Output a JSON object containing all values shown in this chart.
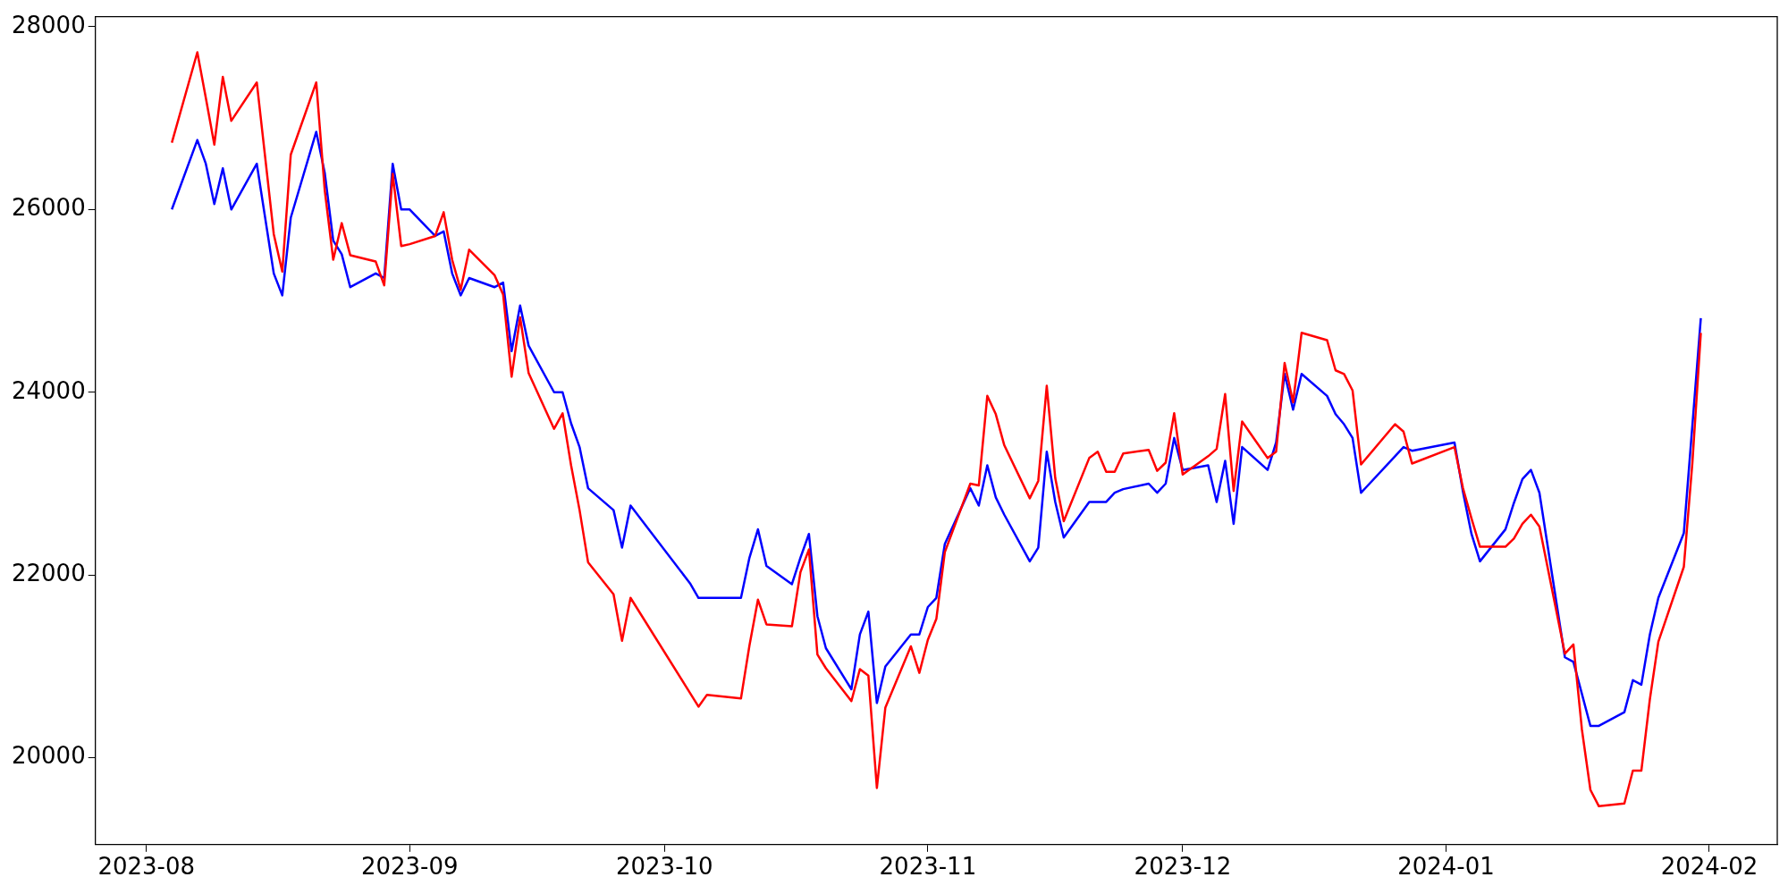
{
  "chart_data": {
    "type": "line",
    "x": [
      "2023-08-04",
      "2023-08-07",
      "2023-08-08",
      "2023-08-09",
      "2023-08-10",
      "2023-08-11",
      "2023-08-14",
      "2023-08-16",
      "2023-08-17",
      "2023-08-18",
      "2023-08-21",
      "2023-08-22",
      "2023-08-23",
      "2023-08-24",
      "2023-08-25",
      "2023-08-28",
      "2023-08-29",
      "2023-08-30",
      "2023-08-31",
      "2023-09-01",
      "2023-09-04",
      "2023-09-05",
      "2023-09-06",
      "2023-09-07",
      "2023-09-08",
      "2023-09-11",
      "2023-09-12",
      "2023-09-13",
      "2023-09-14",
      "2023-09-15",
      "2023-09-18",
      "2023-09-19",
      "2023-09-20",
      "2023-09-21",
      "2023-09-22",
      "2023-09-25",
      "2023-09-26",
      "2023-09-27",
      "2023-10-04",
      "2023-10-05",
      "2023-10-06",
      "2023-10-10",
      "2023-10-11",
      "2023-10-12",
      "2023-10-13",
      "2023-10-16",
      "2023-10-17",
      "2023-10-18",
      "2023-10-19",
      "2023-10-20",
      "2023-10-23",
      "2023-10-24",
      "2023-10-25",
      "2023-10-26",
      "2023-10-27",
      "2023-10-30",
      "2023-10-31",
      "2023-11-01",
      "2023-11-02",
      "2023-11-03",
      "2023-11-06",
      "2023-11-07",
      "2023-11-08",
      "2023-11-09",
      "2023-11-10",
      "2023-11-13",
      "2023-11-14",
      "2023-11-15",
      "2023-11-16",
      "2023-11-17",
      "2023-11-20",
      "2023-11-21",
      "2023-11-22",
      "2023-11-23",
      "2023-11-24",
      "2023-11-27",
      "2023-11-28",
      "2023-11-29",
      "2023-11-30",
      "2023-12-01",
      "2023-12-04",
      "2023-12-05",
      "2023-12-06",
      "2023-12-07",
      "2023-12-08",
      "2023-12-11",
      "2023-12-12",
      "2023-12-13",
      "2023-12-14",
      "2023-12-15",
      "2023-12-18",
      "2023-12-19",
      "2023-12-20",
      "2023-12-21",
      "2023-12-22",
      "2023-12-26",
      "2023-12-27",
      "2023-12-28",
      "2024-01-02",
      "2024-01-03",
      "2024-01-04",
      "2024-01-05",
      "2024-01-08",
      "2024-01-09",
      "2024-01-10",
      "2024-01-11",
      "2024-01-12",
      "2024-01-15",
      "2024-01-16",
      "2024-01-17",
      "2024-01-18",
      "2024-01-19",
      "2024-01-22",
      "2024-01-23",
      "2024-01-24",
      "2024-01-25",
      "2024-01-26",
      "2024-01-29",
      "2024-01-30",
      "2024-01-31"
    ],
    "series": [
      {
        "color": "#ff0000",
        "values": [
          26730,
          27720,
          27220,
          26710,
          27450,
          26970,
          27390,
          25730,
          25320,
          26600,
          27390,
          26210,
          25450,
          25850,
          25500,
          25430,
          25170,
          26390,
          25600,
          25620,
          25710,
          25970,
          25450,
          25120,
          25560,
          25280,
          25070,
          24170,
          24820,
          24210,
          23600,
          23770,
          23200,
          22710,
          22140,
          21790,
          21280,
          21750,
          20710,
          20560,
          20690,
          20650,
          21230,
          21730,
          21460,
          21440,
          22030,
          22280,
          21130,
          20980,
          20620,
          20970,
          20900,
          19670,
          20550,
          21220,
          20930,
          21290,
          21520,
          22250,
          23000,
          22980,
          23960,
          23760,
          23420,
          22840,
          23030,
          24070,
          23060,
          22590,
          23280,
          23350,
          23130,
          23130,
          23330,
          23370,
          23140,
          23230,
          23770,
          23100,
          23300,
          23380,
          23980,
          22920,
          23680,
          23280,
          23350,
          24320,
          23890,
          24650,
          24570,
          24240,
          24200,
          24020,
          23210,
          23650,
          23570,
          23220,
          23400,
          22950,
          22620,
          22310,
          22310,
          22400,
          22560,
          22660,
          22530,
          21140,
          21240,
          20310,
          19650,
          19470,
          19500,
          19860,
          19860,
          20640,
          21270,
          22090,
          23220,
          24650
        ]
      },
      {
        "color": "#0000ff",
        "values": [
          26000,
          26760,
          26500,
          26060,
          26450,
          26000,
          26500,
          25300,
          25060,
          25910,
          26850,
          26400,
          25660,
          25510,
          25150,
          25300,
          25250,
          26500,
          26000,
          26000,
          25710,
          25760,
          25300,
          25060,
          25250,
          25150,
          25200,
          24450,
          24950,
          24510,
          24000,
          24000,
          23660,
          23400,
          22950,
          22710,
          22300,
          22760,
          21910,
          21750,
          21750,
          21750,
          22190,
          22500,
          22100,
          21900,
          22190,
          22450,
          21550,
          21200,
          20750,
          21350,
          21600,
          20600,
          21000,
          21350,
          21350,
          21650,
          21750,
          22340,
          22950,
          22760,
          23200,
          22850,
          22660,
          22150,
          22300,
          23350,
          22800,
          22410,
          22800,
          22800,
          22800,
          22900,
          22940,
          23000,
          22900,
          23000,
          23500,
          23150,
          23200,
          22800,
          23250,
          22560,
          23400,
          23150,
          23450,
          24200,
          23810,
          24200,
          23960,
          23760,
          23650,
          23500,
          22900,
          23300,
          23400,
          23360,
          23450,
          22910,
          22450,
          22150,
          22500,
          22790,
          23050,
          23150,
          22900,
          21100,
          21050,
          20700,
          20350,
          20350,
          20500,
          20850,
          20800,
          21350,
          21750,
          22460,
          23630,
          24810
        ]
      }
    ],
    "xlim": [
      "2023-07-26",
      "2024-02-09"
    ],
    "xticks": [
      {
        "value": "2023-08-01",
        "label": "2023-08"
      },
      {
        "value": "2023-09-01",
        "label": "2023-09"
      },
      {
        "value": "2023-10-01",
        "label": "2023-10"
      },
      {
        "value": "2023-11-01",
        "label": "2023-11"
      },
      {
        "value": "2023-12-01",
        "label": "2023-12"
      },
      {
        "value": "2024-01-01",
        "label": "2024-01"
      },
      {
        "value": "2024-02-01",
        "label": "2024-02"
      }
    ],
    "ylim": [
      19050,
      28110
    ],
    "yticks": [
      20000,
      22000,
      24000,
      26000,
      28000
    ],
    "grid": false,
    "legend": false,
    "marker": "none",
    "line_style": "solid"
  }
}
